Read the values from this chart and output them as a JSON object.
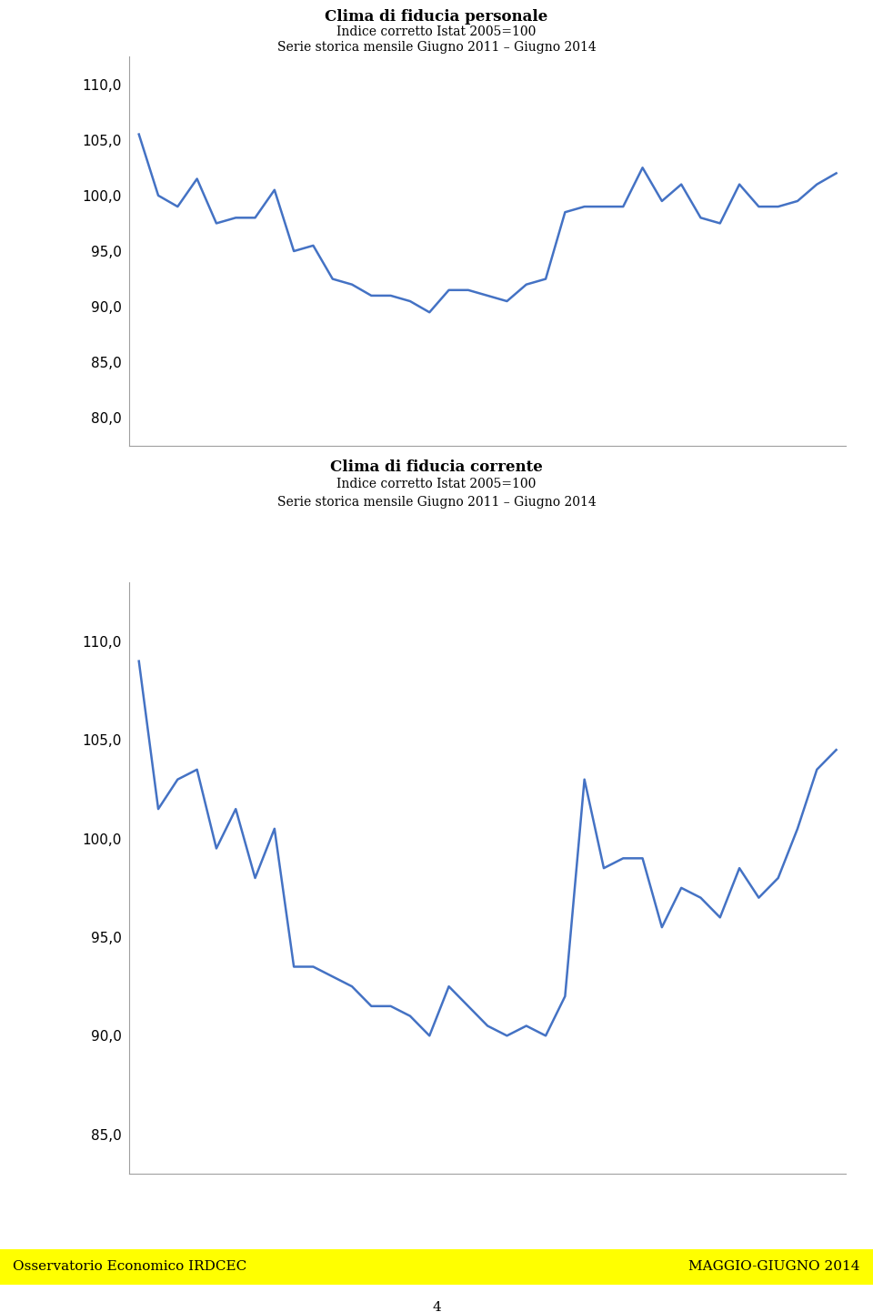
{
  "title1_line1": "Clima di fiducia personale",
  "title1_line2": "Indice corretto Istat 2005=100",
  "title1_line3": "Serie storica mensile Giugno 2011 – Giugno 2014",
  "title2_line1": "Clima di fiducia corrente",
  "title2_line2": "Indice corretto Istat 2005=100",
  "title2_line3": "Serie storica mensile Giugno 2011 – Giugno 2014",
  "line_color": "#4472C4",
  "line_width": 1.8,
  "yticks1": [
    80.0,
    85.0,
    90.0,
    95.0,
    100.0,
    105.0,
    110.0
  ],
  "ylim1": [
    77.5,
    112.5
  ],
  "yticks2": [
    85.0,
    90.0,
    95.0,
    100.0,
    105.0,
    110.0
  ],
  "ylim2": [
    83.0,
    113.0
  ],
  "footer_left": "Osservatorio Economico IRDCEC",
  "footer_right": "MAGGIO-GIUGNO 2014",
  "footer_page": "4",
  "data1": [
    105.5,
    100.0,
    99.0,
    101.5,
    97.5,
    98.0,
    98.0,
    100.5,
    95.0,
    95.5,
    92.5,
    92.0,
    91.0,
    91.0,
    90.5,
    89.5,
    91.5,
    91.5,
    91.0,
    90.5,
    92.0,
    92.5,
    98.5,
    99.0,
    99.0,
    99.0,
    102.5,
    99.5,
    101.0,
    98.0,
    97.5,
    101.0,
    99.0,
    99.0,
    99.5,
    101.0,
    102.0
  ],
  "data2": [
    109.0,
    101.5,
    103.0,
    103.5,
    99.5,
    101.5,
    98.0,
    100.5,
    93.5,
    93.5,
    93.0,
    92.5,
    91.5,
    91.5,
    91.0,
    90.0,
    92.5,
    91.5,
    90.5,
    90.0,
    90.5,
    90.0,
    92.0,
    103.0,
    98.5,
    99.0,
    99.0,
    95.5,
    97.5,
    97.0,
    96.0,
    98.5,
    97.0,
    98.0,
    100.5,
    103.5,
    104.5
  ],
  "background_color": "#FFFFFF",
  "axis_color": "#A0A0A0",
  "tick_fontsize": 11,
  "title_fontsize_main": 12,
  "title_fontsize_sub": 10,
  "footer_fontsize": 11
}
